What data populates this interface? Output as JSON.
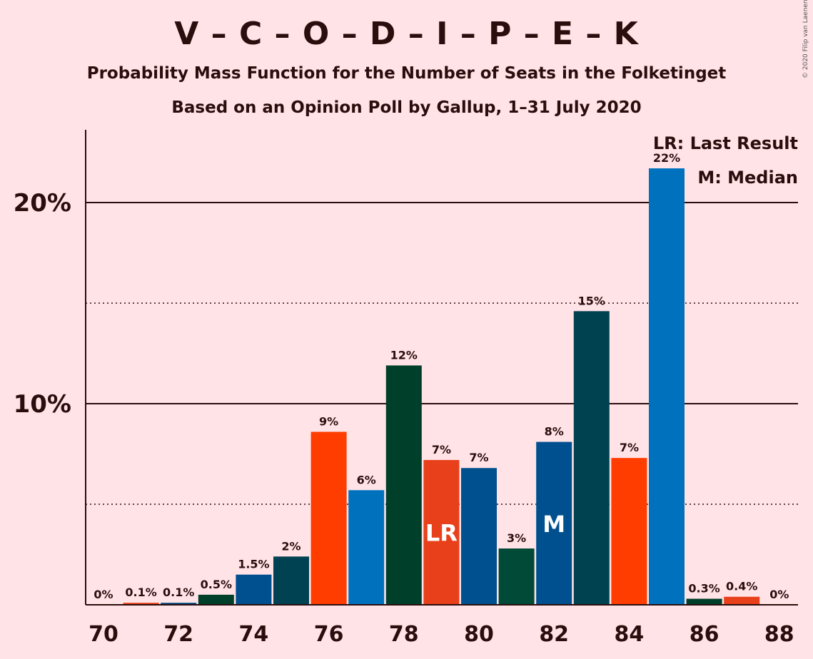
{
  "header": {
    "title": "V – C – O – D – I – P – E – K",
    "subtitle": "Probability Mass Function for the Number of Seats in the Folketinget",
    "subtitle2": "Based on an Opinion Poll by Gallup, 1–31 July 2020",
    "copyright": "© 2020 Filip van Laenen"
  },
  "legend": {
    "last_result": "LR: Last Result",
    "median": "M: Median"
  },
  "chart_data": {
    "type": "bar",
    "categories": [
      70,
      71,
      72,
      73,
      74,
      75,
      76,
      77,
      78,
      79,
      80,
      81,
      82,
      83,
      84,
      85,
      86,
      87,
      88
    ],
    "values": [
      0,
      0.1,
      0.1,
      0.5,
      1.5,
      2.4,
      8.6,
      5.7,
      11.9,
      7.2,
      6.8,
      2.8,
      8.1,
      14.6,
      7.3,
      21.7,
      0.3,
      0.4,
      0
    ],
    "data_labels": [
      "0%",
      "0.1%",
      "0.1%",
      "0.5%",
      "1.5%",
      "2%",
      "9%",
      "6%",
      "12%",
      "7%",
      "7%",
      "3%",
      "8%",
      "15%",
      "7%",
      "22%",
      "0.3%",
      "0.4%",
      "0%"
    ],
    "colors": [
      "#003f2a",
      "#e8401a",
      "#00487f",
      "#003f2a",
      "#00508f",
      "#004152",
      "#ff3d00",
      "#0072bd",
      "#003f2a",
      "#e8401a",
      "#00508f",
      "#004a37",
      "#00508f",
      "#00424f",
      "#ff3d00",
      "#0072bd",
      "#003f2a",
      "#e8401a",
      "#00508f"
    ],
    "markers": [
      {
        "seat": 79,
        "label": "LR"
      },
      {
        "seat": 82,
        "label": "M"
      }
    ],
    "x_ticks": [
      70,
      72,
      74,
      76,
      78,
      80,
      82,
      84,
      86,
      88
    ],
    "y_ticks": [
      {
        "value": 10,
        "label": "10%"
      },
      {
        "value": 20,
        "label": "20%"
      }
    ],
    "y_minor_gridlines": [
      5,
      15
    ],
    "ylim": [
      0,
      23.6
    ],
    "legend_position": "top-right"
  }
}
